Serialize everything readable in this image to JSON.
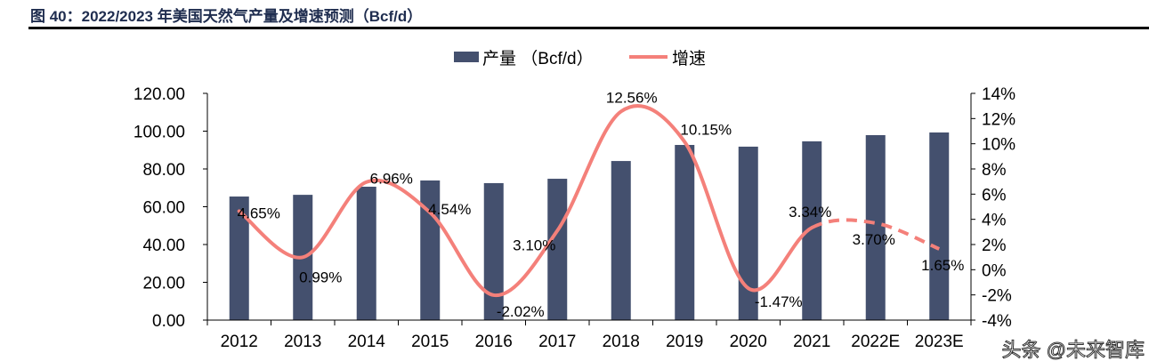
{
  "title": "图 40：2022/2023 年美国天然气产量及增速预测（Bcf/d）",
  "watermark": "头条 @未来智库",
  "chart_data": {
    "type": "bar+line",
    "categories": [
      "2012",
      "2013",
      "2014",
      "2015",
      "2016",
      "2017",
      "2018",
      "2019",
      "2020",
      "2021",
      "2022E",
      "2023E"
    ],
    "series": [
      {
        "name": "产量 （Bcf/d）",
        "type": "bar",
        "axis": "left",
        "color": "#44506e",
        "values": [
          65.4,
          66.3,
          70.6,
          73.9,
          72.5,
          74.8,
          84.2,
          92.7,
          91.8,
          94.6,
          97.9,
          99.3
        ]
      },
      {
        "name": "增速",
        "type": "line",
        "axis": "right",
        "color": "#f4807a",
        "smooth": true,
        "dashed_from": "2021",
        "values": [
          4.65,
          0.99,
          6.96,
          4.54,
          -2.02,
          3.1,
          12.56,
          10.15,
          -1.47,
          3.34,
          3.7,
          1.65
        ],
        "labels": [
          "4.65%",
          "0.99%",
          "6.96%",
          "4.54%",
          "-2.02%",
          "3.10%",
          "12.56%",
          "10.15%",
          "-1.47%",
          "3.34%",
          "3.70%",
          "1.65%"
        ]
      }
    ],
    "left_axis": {
      "ylim": [
        0,
        120
      ],
      "ticks": [
        "0.00",
        "20.00",
        "40.00",
        "60.00",
        "80.00",
        "100.00",
        "120.00"
      ]
    },
    "right_axis": {
      "ylim": [
        -4,
        14
      ],
      "ticks": [
        "-4%",
        "-2%",
        "0%",
        "2%",
        "4%",
        "6%",
        "8%",
        "10%",
        "12%",
        "14%"
      ]
    },
    "legend": "top-center",
    "grid": false
  }
}
